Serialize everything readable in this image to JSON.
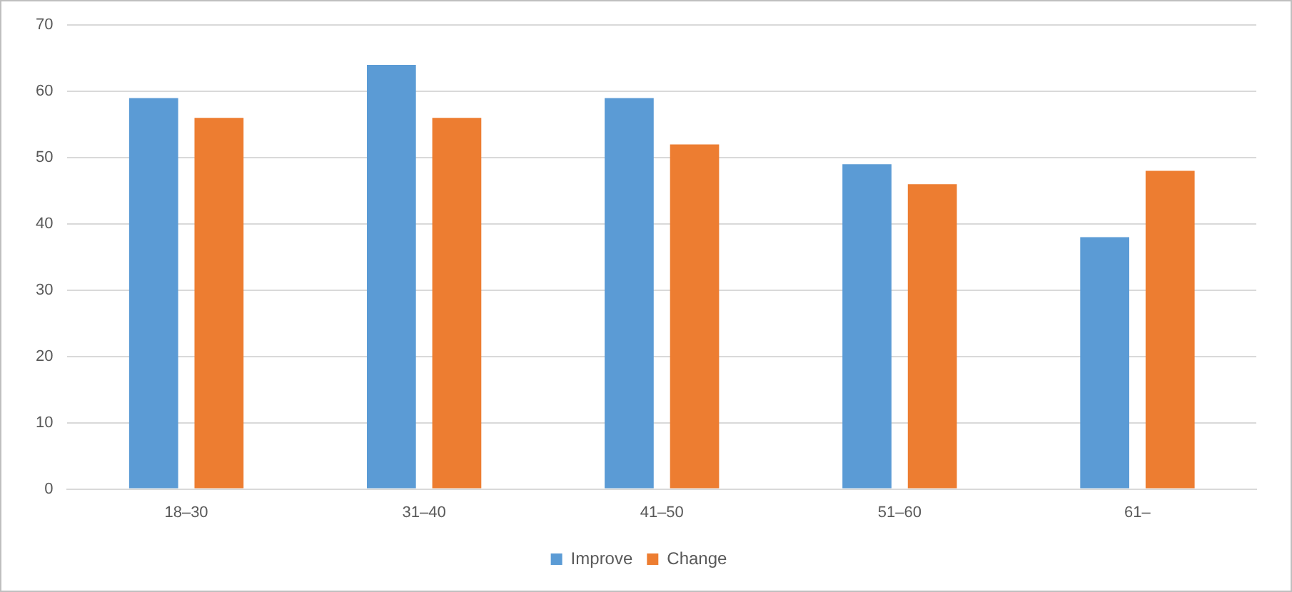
{
  "chart_data": {
    "type": "bar",
    "categories": [
      "18–30",
      "31–40",
      "41–50",
      "51–60",
      "61–"
    ],
    "series": [
      {
        "name": "Improve",
        "color": "#5b9bd5",
        "values": [
          59,
          64,
          59,
          49,
          38
        ]
      },
      {
        "name": "Change",
        "color": "#ed7d31",
        "values": [
          56,
          56,
          52,
          46,
          48
        ]
      }
    ],
    "ylim": [
      0,
      70
    ],
    "yticks": [
      0,
      10,
      20,
      30,
      40,
      50,
      60,
      70
    ],
    "grid": "y",
    "legend": "bottom"
  }
}
